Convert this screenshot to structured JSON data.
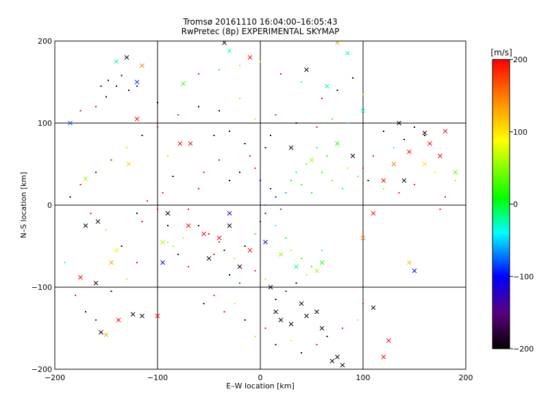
{
  "chart_data": {
    "type": "scatter",
    "title": "Tromsø 20161110 16:04:00–16:05:43",
    "subtitle": "RwPretec (8p) EXPERIMENTAL SKYMAP",
    "xlabel": "E–W location [km]",
    "ylabel": "N–S location [km]",
    "xlim": [
      -200,
      200
    ],
    "ylim": [
      -200,
      200
    ],
    "x_ticks": [
      -200,
      -100,
      0,
      100,
      200
    ],
    "y_ticks": [
      -200,
      -100,
      0,
      100,
      200
    ],
    "grid": true,
    "colorbar": {
      "label": "[m/s]",
      "range": [
        -200,
        200
      ],
      "ticks": [
        200,
        100,
        0,
        -100,
        -200
      ],
      "colormap": [
        "#000000",
        "#5a007a",
        "#0000ff",
        "#00ffff",
        "#00ff00",
        "#ffff00",
        "#ff8800",
        "#ff0000"
      ]
    },
    "series": [
      {
        "marker": "cross",
        "points": [
          [
            -185,
            100,
            -80
          ],
          [
            -130,
            180,
            -200
          ],
          [
            -140,
            175,
            -20
          ],
          [
            -120,
            150,
            -90
          ],
          [
            -115,
            170,
            150
          ],
          [
            -155,
            -155,
            -200
          ],
          [
            -150,
            -158,
            130
          ],
          [
            -170,
            -25,
            -200
          ],
          [
            -170,
            32,
            60
          ],
          [
            -158,
            -20,
            -200
          ],
          [
            -160,
            -95,
            -200
          ],
          [
            -175,
            -88,
            200
          ],
          [
            -138,
            -140,
            200
          ],
          [
            -124,
            -133,
            -200
          ],
          [
            -128,
            50,
            110
          ],
          [
            -140,
            -55,
            80
          ],
          [
            -145,
            -70,
            130
          ],
          [
            -95,
            -45,
            60
          ],
          [
            -90,
            -10,
            -200
          ],
          [
            -70,
            -25,
            200
          ],
          [
            -35,
            198,
            -200
          ],
          [
            -30,
            188,
            -30
          ],
          [
            -10,
            180,
            200
          ],
          [
            -55,
            -35,
            200
          ],
          [
            -50,
            -65,
            -200
          ],
          [
            -40,
            -40,
            200
          ],
          [
            -30,
            -25,
            -200
          ],
          [
            -20,
            -75,
            -200
          ],
          [
            -10,
            -55,
            200
          ],
          [
            10,
            -100,
            -200
          ],
          [
            15,
            -130,
            -200
          ],
          [
            20,
            -140,
            -200
          ],
          [
            30,
            -145,
            -200
          ],
          [
            40,
            -120,
            -200
          ],
          [
            45,
            -135,
            -200
          ],
          [
            55,
            -130,
            -200
          ],
          [
            60,
            -150,
            -200
          ],
          [
            70,
            -190,
            -200
          ],
          [
            75,
            -185,
            -200
          ],
          [
            80,
            -195,
            -200
          ],
          [
            5,
            -45,
            -100
          ],
          [
            20,
            -60,
            60
          ],
          [
            35,
            -75,
            -20
          ],
          [
            55,
            -80,
            60
          ],
          [
            60,
            -70,
            20
          ],
          [
            30,
            70,
            -200
          ],
          [
            50,
            55,
            60
          ],
          [
            75,
            75,
            20
          ],
          [
            90,
            60,
            -200
          ],
          [
            100,
            -40,
            150
          ],
          [
            110,
            -10,
            200
          ],
          [
            120,
            30,
            200
          ],
          [
            130,
            50,
            150
          ],
          [
            140,
            30,
            -200
          ],
          [
            145,
            65,
            200
          ],
          [
            165,
            75,
            200
          ],
          [
            175,
            60,
            200
          ],
          [
            180,
            90,
            200
          ],
          [
            160,
            50,
            100
          ],
          [
            190,
            40,
            40
          ],
          [
            120,
            -185,
            200
          ],
          [
            125,
            -165,
            200
          ],
          [
            110,
            -125,
            -200
          ],
          [
            145,
            -70,
            120
          ],
          [
            150,
            -80,
            -100
          ],
          [
            100,
            115,
            -20
          ],
          [
            135,
            100,
            -200
          ],
          [
            160,
            88,
            -200
          ],
          [
            75,
            198,
            130
          ],
          [
            85,
            185,
            -30
          ],
          [
            45,
            165,
            -200
          ],
          [
            65,
            145,
            -20
          ],
          [
            -78,
            75,
            200
          ],
          [
            -68,
            75,
            200
          ],
          [
            -95,
            -70,
            -100
          ],
          [
            -100,
            -135,
            200
          ],
          [
            -120,
            105,
            200
          ],
          [
            -75,
            148,
            30
          ],
          [
            -115,
            -135,
            -200
          ],
          [
            -30,
            -10,
            -100
          ]
        ]
      },
      {
        "marker": "dot",
        "points": [
          [
            -155,
            145,
            -200
          ],
          [
            -148,
            152,
            -200
          ],
          [
            -140,
            145,
            -200
          ],
          [
            -135,
            158,
            -200
          ],
          [
            -128,
            140,
            -200
          ],
          [
            -150,
            132,
            -200
          ],
          [
            -120,
            145,
            -100
          ],
          [
            -160,
            120,
            200
          ],
          [
            -100,
            125,
            -200
          ],
          [
            -175,
            115,
            200
          ],
          [
            -45,
            85,
            -200
          ],
          [
            -30,
            90,
            -200
          ],
          [
            -15,
            75,
            -200
          ],
          [
            5,
            70,
            -200
          ],
          [
            10,
            85,
            -200
          ],
          [
            -10,
            60,
            200
          ],
          [
            -5,
            45,
            200
          ],
          [
            0,
            30,
            -100
          ],
          [
            10,
            20,
            -100
          ],
          [
            15,
            10,
            -100
          ],
          [
            5,
            0,
            -80
          ],
          [
            20,
            -5,
            -80
          ],
          [
            25,
            15,
            -60
          ],
          [
            30,
            30,
            0
          ],
          [
            40,
            25,
            20
          ],
          [
            50,
            15,
            10
          ],
          [
            60,
            40,
            20
          ],
          [
            70,
            30,
            40
          ],
          [
            80,
            20,
            -20
          ],
          [
            45,
            50,
            30
          ],
          [
            55,
            70,
            -20
          ],
          [
            65,
            60,
            10
          ],
          [
            85,
            45,
            60
          ],
          [
            95,
            35,
            40
          ],
          [
            35,
            40,
            -10
          ],
          [
            -20,
            40,
            -200
          ],
          [
            -30,
            30,
            -200
          ],
          [
            -40,
            55,
            200
          ],
          [
            -55,
            40,
            200
          ],
          [
            -60,
            20,
            200
          ],
          [
            -70,
            -5,
            200
          ],
          [
            -60,
            -25,
            -200
          ],
          [
            -50,
            -35,
            200
          ],
          [
            -40,
            -45,
            200
          ],
          [
            -35,
            -55,
            -200
          ],
          [
            -25,
            -65,
            60
          ],
          [
            -15,
            -50,
            -200
          ],
          [
            -5,
            -35,
            20
          ],
          [
            0,
            -20,
            -100
          ],
          [
            5,
            -10,
            -100
          ],
          [
            15,
            -25,
            -40
          ],
          [
            25,
            -40,
            0
          ],
          [
            30,
            -55,
            60
          ],
          [
            40,
            -65,
            20
          ],
          [
            50,
            -75,
            0
          ],
          [
            60,
            -55,
            -20
          ],
          [
            45,
            -85,
            60
          ],
          [
            35,
            -95,
            -200
          ],
          [
            25,
            -105,
            -100
          ],
          [
            15,
            -115,
            -200
          ],
          [
            5,
            -90,
            60
          ],
          [
            -5,
            -80,
            200
          ],
          [
            -20,
            -95,
            200
          ],
          [
            -30,
            -85,
            -200
          ],
          [
            -45,
            -60,
            200
          ],
          [
            -75,
            -40,
            60
          ],
          [
            -85,
            -50,
            60
          ],
          [
            -90,
            -45,
            60
          ],
          [
            -80,
            -60,
            -200
          ],
          [
            -70,
            -75,
            200
          ],
          [
            -90,
            -25,
            -200
          ],
          [
            -100,
            -5,
            200
          ],
          [
            -110,
            5,
            200
          ],
          [
            -115,
            -20,
            200
          ],
          [
            -120,
            -10,
            -200
          ],
          [
            120,
            90,
            -200
          ],
          [
            140,
            80,
            -200
          ],
          [
            150,
            95,
            -200
          ],
          [
            160,
            85,
            -200
          ],
          [
            130,
            70,
            -20
          ],
          [
            110,
            60,
            200
          ],
          [
            100,
            45,
            200
          ],
          [
            105,
            30,
            -200
          ],
          [
            120,
            20,
            60
          ],
          [
            135,
            15,
            200
          ],
          [
            150,
            25,
            200
          ],
          [
            170,
            40,
            100
          ],
          [
            180,
            10,
            200
          ],
          [
            190,
            30,
            60
          ],
          [
            175,
            -5,
            200
          ],
          [
            -60,
            160,
            200
          ],
          [
            -40,
            165,
            0
          ],
          [
            -20,
            170,
            60
          ],
          [
            0,
            175,
            120
          ],
          [
            20,
            160,
            200
          ],
          [
            40,
            150,
            -20
          ],
          [
            60,
            130,
            200
          ],
          [
            75,
            140,
            -200
          ],
          [
            90,
            155,
            -200
          ],
          [
            100,
            135,
            60
          ],
          [
            -80,
            110,
            200
          ],
          [
            -60,
            120,
            -200
          ],
          [
            -40,
            115,
            -200
          ],
          [
            -20,
            130,
            60
          ],
          [
            -5,
            105,
            60
          ],
          [
            15,
            110,
            200
          ],
          [
            35,
            100,
            -200
          ],
          [
            55,
            95,
            200
          ],
          [
            70,
            105,
            20
          ],
          [
            85,
            100,
            -20
          ],
          [
            -55,
            -120,
            -200
          ],
          [
            -45,
            -110,
            200
          ],
          [
            -35,
            -130,
            200
          ],
          [
            -25,
            -120,
            60
          ],
          [
            -15,
            -140,
            -200
          ],
          [
            -5,
            -160,
            60
          ],
          [
            5,
            -150,
            200
          ],
          [
            15,
            -170,
            -200
          ],
          [
            30,
            -165,
            100
          ],
          [
            40,
            -180,
            -200
          ],
          [
            55,
            -170,
            200
          ],
          [
            65,
            -160,
            -200
          ],
          [
            80,
            -150,
            200
          ],
          [
            95,
            -140,
            60
          ],
          [
            100,
            -120,
            200
          ],
          [
            -190,
            -70,
            -20
          ],
          [
            -180,
            -110,
            200
          ],
          [
            -170,
            -130,
            -200
          ],
          [
            -160,
            -140,
            -100
          ],
          [
            -145,
            -105,
            -200
          ],
          [
            -130,
            -90,
            60
          ],
          [
            -120,
            -70,
            200
          ],
          [
            -135,
            -50,
            -200
          ],
          [
            -150,
            -30,
            60
          ],
          [
            -165,
            -10,
            200
          ],
          [
            -185,
            10,
            -200
          ],
          [
            -175,
            25,
            200
          ],
          [
            -160,
            40,
            -100
          ],
          [
            -145,
            55,
            200
          ],
          [
            -130,
            70,
            60
          ],
          [
            -115,
            85,
            -200
          ],
          [
            -100,
            95,
            200
          ],
          [
            -90,
            60,
            60
          ],
          [
            -85,
            35,
            -200
          ],
          [
            -95,
            15,
            200
          ]
        ]
      }
    ]
  }
}
